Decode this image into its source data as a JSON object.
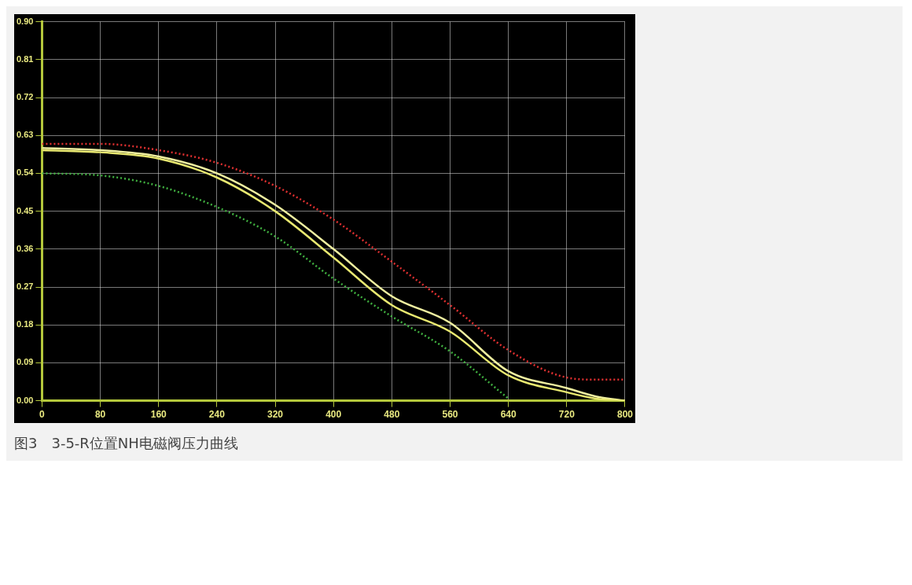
{
  "chart_data": {
    "type": "line",
    "x": [
      0,
      80,
      160,
      240,
      320,
      400,
      480,
      560,
      640,
      720,
      760,
      800
    ],
    "series": [
      {
        "color": "#e03030",
        "line_style": "dotted",
        "values": [
          0.61,
          0.61,
          0.595,
          0.565,
          0.51,
          0.43,
          0.33,
          0.227,
          0.12,
          0.055,
          0.05,
          0.05
        ]
      },
      {
        "color": "#40b040",
        "line_style": "dotted",
        "values": [
          0.54,
          0.535,
          0.51,
          0.46,
          0.39,
          0.29,
          0.2,
          0.117,
          0.005,
          null,
          null,
          null
        ]
      },
      {
        "color": "#e8e870",
        "line_style": "solid",
        "values": [
          0.595,
          0.59,
          0.575,
          0.53,
          0.45,
          0.34,
          0.227,
          0.164,
          0.06,
          0.02,
          0.005,
          0
        ]
      },
      {
        "color": "#f0f0a0",
        "line_style": "solid",
        "values": [
          0.6,
          0.595,
          0.58,
          0.54,
          0.465,
          0.36,
          0.248,
          0.185,
          0.07,
          0.03,
          0.01,
          0
        ]
      }
    ],
    "xlim": [
      0,
      800
    ],
    "xticks": [
      0,
      80,
      160,
      240,
      320,
      400,
      480,
      560,
      640,
      720,
      800
    ],
    "ylim": [
      0,
      0.9
    ],
    "yticks": [
      {
        "value": 0,
        "label": "0.00"
      },
      {
        "value": 0.09,
        "label": "0.09"
      },
      {
        "value": 0.18,
        "label": "0.18"
      },
      {
        "value": 0.27,
        "label": "0.27"
      },
      {
        "value": 0.36,
        "label": "0.36"
      },
      {
        "value": 0.45,
        "label": "0.45"
      },
      {
        "value": 0.54,
        "label": "0.54"
      },
      {
        "value": 0.63,
        "label": "0.63"
      },
      {
        "value": 0.72,
        "label": "0.72"
      },
      {
        "value": 0.81,
        "label": "0.81"
      },
      {
        "value": 0.9,
        "label": "0.90"
      }
    ],
    "grid": true,
    "marker": "none",
    "annotations": [
      "图3　3-5-R位置NH电磁阀压力曲线"
    ]
  }
}
